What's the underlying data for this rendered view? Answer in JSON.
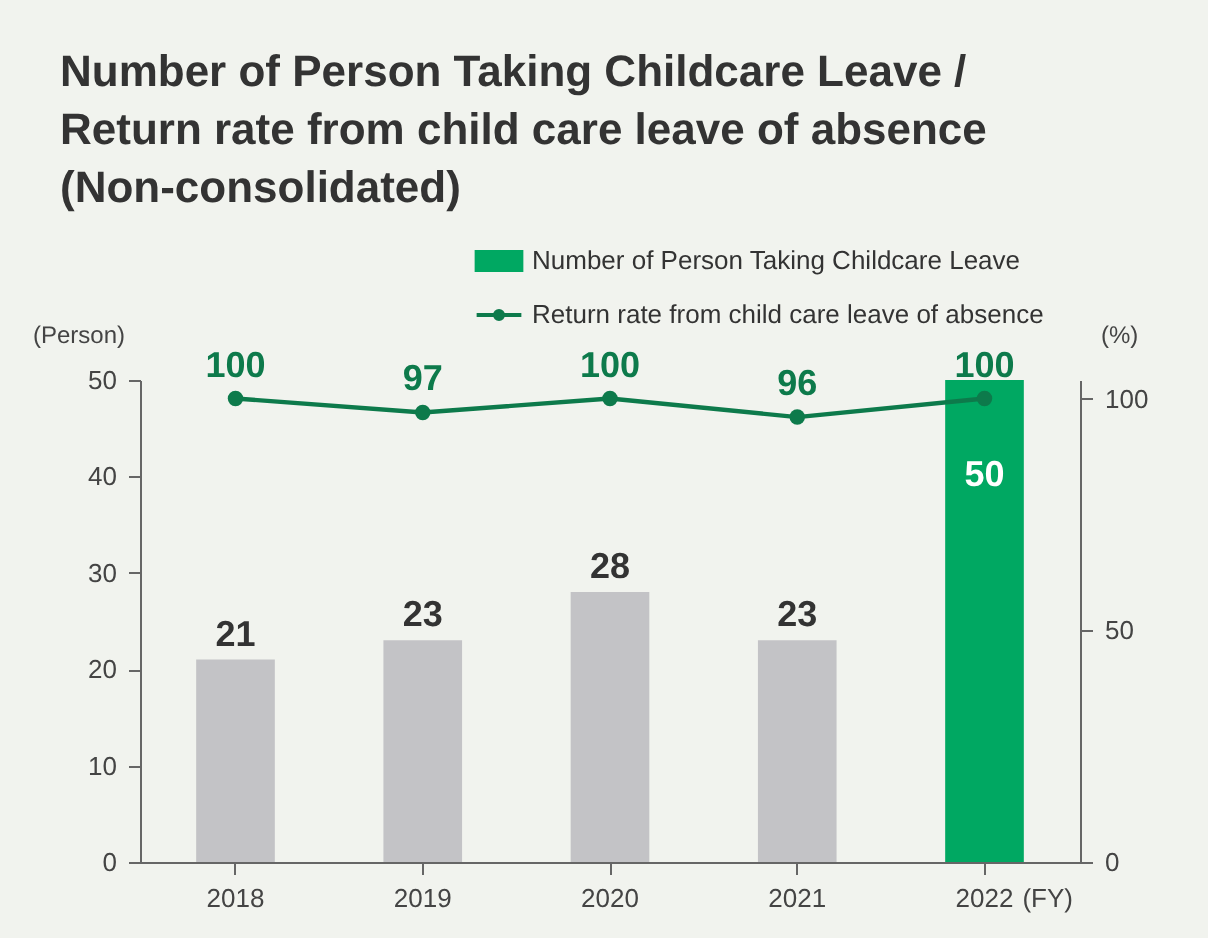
{
  "chart_data": {
    "type": "bar",
    "title": "Number of Person Taking Childcare Leave /\nReturn rate from child care leave of absence\n(Non-consolidated)",
    "xlabel": "(FY)",
    "ylabel": "(Person)",
    "y2label": "(%)",
    "categories": [
      "2018",
      "2019",
      "2020",
      "2021",
      "2022"
    ],
    "series": [
      {
        "name": "Number of Person Taking Childcare Leave",
        "color": "#00a862",
        "colors": [
          "#c3c3c6",
          "#c3c3c6",
          "#c3c3c6",
          "#c3c3c6",
          "#00a862"
        ],
        "values": [
          21,
          23,
          28,
          23,
          50
        ]
      },
      {
        "name": "Return rate from child care leave of absence",
        "type": "line",
        "axis": "y2",
        "color": "#0d7a4b",
        "values": [
          100,
          97,
          100,
          96,
          100
        ]
      }
    ],
    "ylim": [
      0,
      50
    ],
    "yticks": [
      0,
      10,
      20,
      30,
      40,
      50
    ],
    "y2lim": [
      0,
      104
    ],
    "y2ticks": [
      0,
      50,
      100
    ],
    "data_labels": true,
    "legend": "top right",
    "marker": "circle"
  }
}
